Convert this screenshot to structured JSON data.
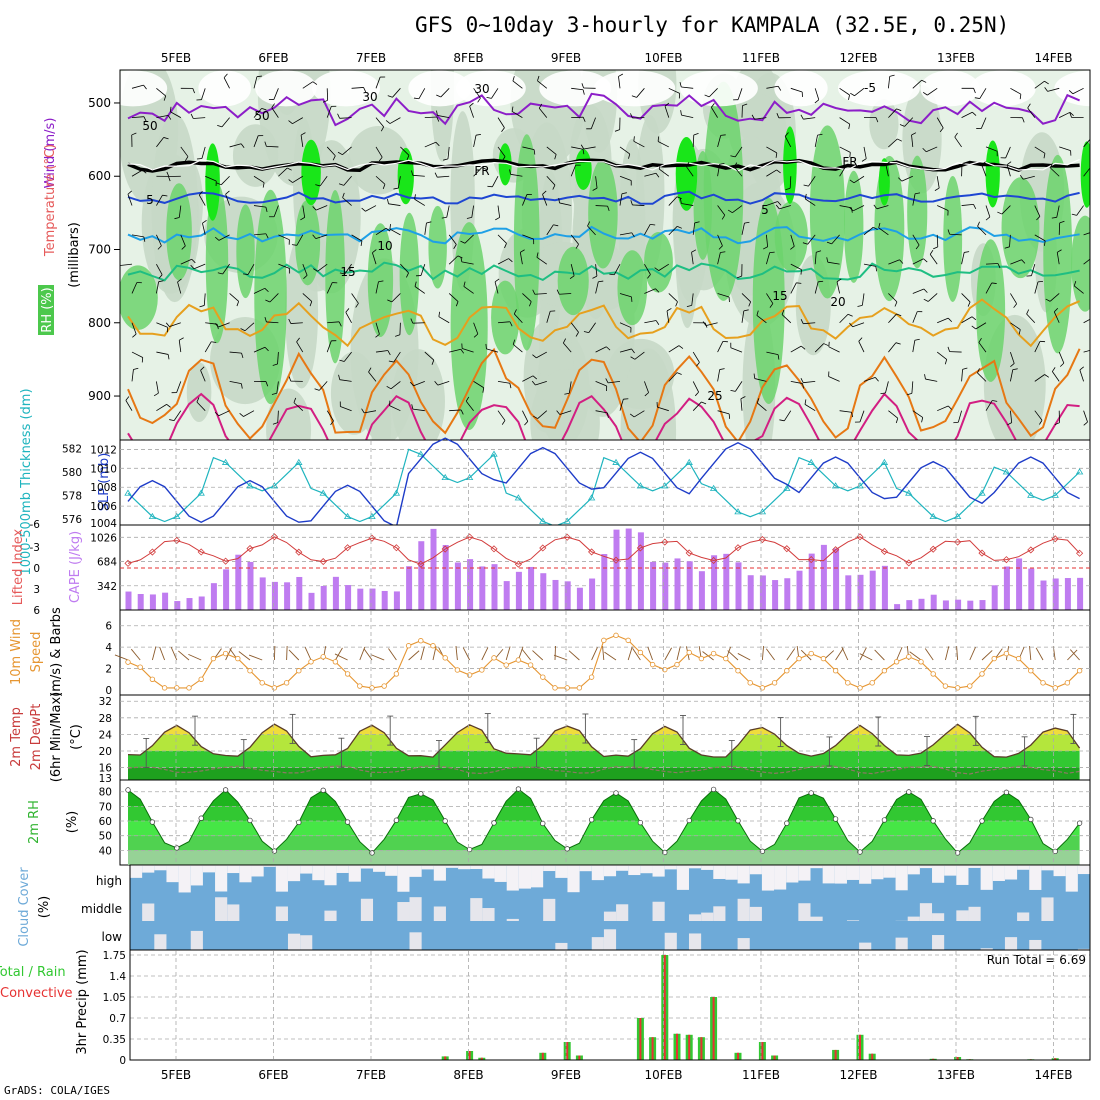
{
  "title": "GFS 0~10day 3-hourly for KAMPALA (32.5E, 0.25N)",
  "credit": "GrADS: COLA/IGES",
  "dates": [
    "5FEB",
    "6FEB",
    "7FEB",
    "8FEB",
    "9FEB",
    "10FEB",
    "11FEB",
    "12FEB",
    "13FEB",
    "14FEB"
  ],
  "colors": {
    "rh_light": "#e6f2e6",
    "rh_mid": "#c6d8c6",
    "rh_green": "#6cd46c",
    "rh_bright": "#19e619",
    "purple": "#8c1ec8",
    "blue": "#1e46d2",
    "cyan": "#1ea0e6",
    "teal": "#1ebe82",
    "orange": "#e6a01e",
    "orange2": "#e67814",
    "magenta": "#d21e82",
    "slp": "#1e3cc8",
    "thick": "#1eb4be",
    "cape": "#bf7cf0",
    "li": "#d23c3c",
    "wind": "#e69632",
    "barb": "#8b5a2b",
    "cloud": "#6eaad8",
    "cloud_clear": "#f4f2f6",
    "precip_total": "#32c832",
    "precip_conv": "#e63232"
  },
  "panels": {
    "upper": {
      "labels": {
        "rh": "RH (%)",
        "temperature": "Temperature (°C)",
        "wind": "Wind (m/s)",
        "millibars": "(millibars)"
      },
      "yticks": [
        500,
        600,
        700,
        800,
        900
      ],
      "contour_labels": [
        "-5",
        "FR",
        "FR",
        "5",
        "5",
        "10",
        "15",
        "15",
        "20",
        "25",
        "50",
        "50",
        "30",
        "30"
      ]
    },
    "slp": {
      "labels": {
        "thickness": "1000-500mb Thickness (dm)",
        "slp": "SLP (mb)"
      },
      "thickness_ticks": [
        576,
        578,
        580,
        582
      ],
      "slp_ticks": [
        1006,
        1008,
        1010,
        1012
      ],
      "slp_bottom_tick": "1004"
    },
    "cape": {
      "labels": {
        "li": "Lifted Index",
        "cape": "CAPE (J/kg)"
      },
      "li_ticks": [
        "-3",
        "0",
        "3",
        "6"
      ],
      "li_top_tick": "-6",
      "cape_ticks": [
        342,
        684,
        1026
      ]
    },
    "wind10": {
      "labels": {
        "title": "10m Wind",
        "l2": "Speed",
        "l3": "(m/s) & Barbs"
      },
      "yticks": [
        0,
        2,
        4,
        6
      ]
    },
    "temp2m": {
      "labels": {
        "t1": "2m Temp",
        "t2": "2m DewPt",
        "t3": "(6hr Min/Max)",
        "unit": "(°C)"
      },
      "yticks": [
        16,
        20,
        24,
        28,
        32
      ],
      "bottom_tick": "13"
    },
    "rh2m": {
      "labels": {
        "title": "2m RH",
        "unit": "(%)"
      },
      "yticks": [
        40,
        50,
        60,
        70,
        80
      ]
    },
    "cloud": {
      "labels": {
        "title": "Cloud Cover",
        "unit": "(%)",
        "high": "high",
        "middle": "middle",
        "low": "low"
      }
    },
    "precip": {
      "labels": {
        "title": "3hr Precip (mm)",
        "total": "Total / Rain",
        "conv": "Convective"
      },
      "yticks": [
        "0",
        "0.35",
        "0.7",
        "1.05",
        "1.4",
        "1.75"
      ],
      "run_total": "Run Total = 6.69"
    }
  },
  "chart_data": [
    {
      "type": "line",
      "title": "SLP (mb)",
      "x": [
        "5FEB",
        "6FEB",
        "7FEB",
        "8FEB",
        "9FEB",
        "10FEB",
        "11FEB",
        "12FEB",
        "13FEB",
        "14FEB"
      ],
      "series": [
        {
          "name": "SLP (mb)",
          "values": [
            1006.5,
            1006.5,
            1006.0,
            1011.0,
            1010.0,
            1009.5,
            1010.5,
            1009.0,
            1008.5,
            1009.0
          ]
        },
        {
          "name": "1000-500mb Thickness (dm)",
          "values": [
            577.2,
            579.8,
            577.2,
            580.5,
            576.8,
            579.8,
            577.6,
            579.8,
            577.2,
            579.0
          ]
        }
      ],
      "ylim": [
        1004,
        1013
      ]
    },
    {
      "type": "bar",
      "title": "CAPE (J/kg)",
      "x": [
        "5FEB",
        "6FEB",
        "7FEB",
        "8FEB",
        "9FEB",
        "10FEB",
        "11FEB",
        "12FEB",
        "13FEB",
        "14FEB"
      ],
      "values": [
        200,
        600,
        350,
        950,
        500,
        1100,
        700,
        800,
        100,
        550
      ],
      "ylim": [
        0,
        1200
      ]
    },
    {
      "type": "line",
      "title": "10m Wind Speed (m/s)",
      "x": [
        "5FEB",
        "6FEB",
        "7FEB",
        "8FEB",
        "9FEB",
        "10FEB",
        "11FEB",
        "12FEB",
        "13FEB",
        "14FEB"
      ],
      "values": [
        1.0,
        1.8,
        1.5,
        3.0,
        1.2,
        3.5,
        1.8,
        1.8,
        1.5,
        1.8
      ],
      "ylim": [
        0,
        7
      ]
    },
    {
      "type": "area",
      "title": "2m Temp (°C)",
      "x": [
        "5FEB",
        "6FEB",
        "7FEB",
        "8FEB",
        "9FEB",
        "10FEB",
        "11FEB",
        "12FEB",
        "13FEB",
        "14FEB"
      ],
      "series": [
        {
          "name": "2m Temp",
          "values": [
            22,
            21,
            20,
            22,
            22,
            21,
            21,
            22,
            22,
            21
          ]
        },
        {
          "name": "2m DewPt",
          "values": [
            15,
            16,
            15,
            16,
            16,
            16,
            16,
            16,
            16,
            16
          ]
        }
      ],
      "ylim": [
        13,
        33
      ]
    },
    {
      "type": "area",
      "title": "2m RH (%)",
      "x": [
        "5FEB",
        "6FEB",
        "7FEB",
        "8FEB",
        "9FEB",
        "10FEB",
        "11FEB",
        "12FEB",
        "13FEB",
        "14FEB"
      ],
      "values": [
        45,
        60,
        60,
        60,
        60,
        60,
        60,
        60,
        60,
        60
      ],
      "ylim": [
        30,
        88
      ]
    },
    {
      "type": "bar",
      "title": "3hr Precip (mm)",
      "x": [
        "5FEB",
        "6FEB",
        "7FEB",
        "8FEB",
        "9FEB",
        "10FEB",
        "11FEB",
        "12FEB",
        "13FEB",
        "14FEB"
      ],
      "values": [
        0,
        0,
        0,
        0.15,
        0.3,
        1.75,
        0.3,
        0.42,
        0.05,
        0.03
      ],
      "ylim": [
        0,
        1.75
      ]
    }
  ]
}
